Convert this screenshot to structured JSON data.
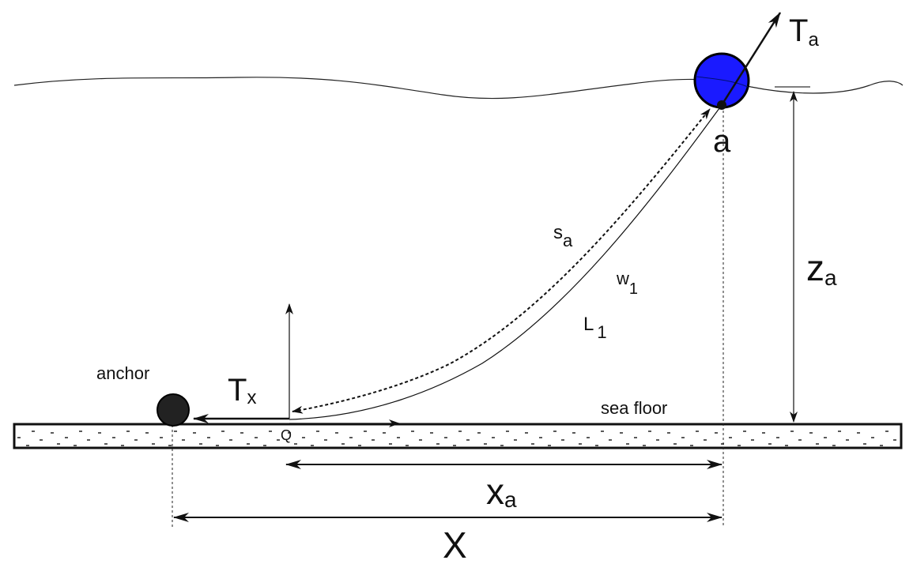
{
  "labels": {
    "tension_a": {
      "main": "T",
      "sub": "a"
    },
    "point_a": "a",
    "arc_length": {
      "main": "s",
      "sub": "a"
    },
    "weight": {
      "main": "w",
      "sub": "1"
    },
    "length": {
      "main": "L",
      "sub": "1"
    },
    "depth": {
      "main": "z",
      "sub": "a"
    },
    "anchor": "anchor",
    "tension_x": {
      "main": "T",
      "sub": "x"
    },
    "sea_floor": "sea floor",
    "point_q": "Q",
    "horizontal_a": {
      "main": "x",
      "sub": "a"
    },
    "span": "X"
  },
  "colors": {
    "buoy": "#1a1aff",
    "anchor": "#222222",
    "lines": "#111111"
  }
}
